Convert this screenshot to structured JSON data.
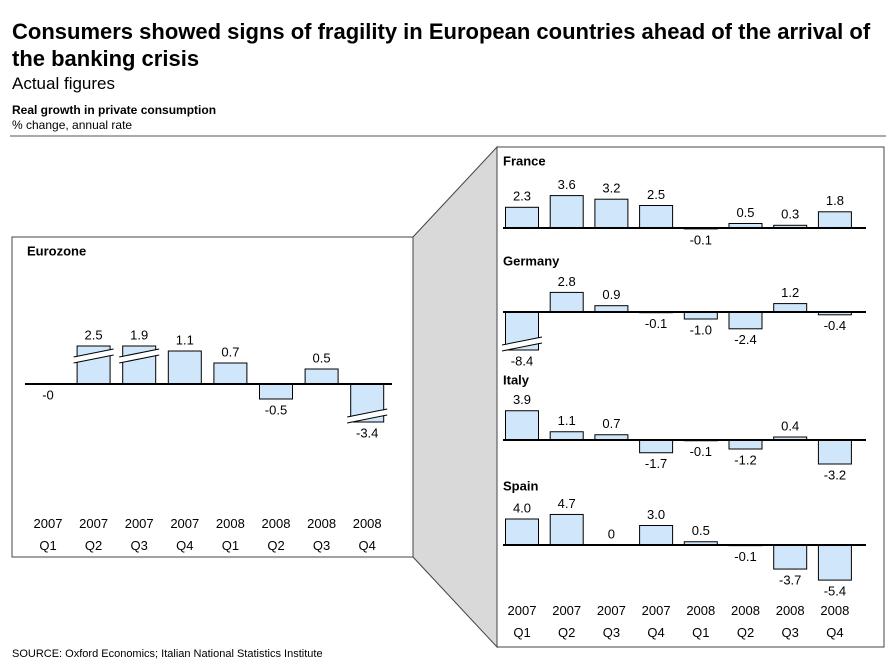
{
  "title": "Consumers showed signs of fragility in European countries ahead of the arrival of the banking crisis",
  "subtitle": "Actual figures",
  "chart_title": "Real growth in private consumption",
  "chart_subtitle": "% change, annual rate",
  "source": "SOURCE: Oxford Economics; Italian National Statistics Institute",
  "chart_data": [
    {
      "type": "bar",
      "title": "Eurozone",
      "color": "#cfe6fb",
      "categories": [
        "2007 Q1",
        "2007 Q2",
        "2007 Q3",
        "2007 Q4",
        "2008 Q1",
        "2008 Q2",
        "2008 Q3",
        "2008 Q4"
      ],
      "values": [
        0,
        2.5,
        1.9,
        1.1,
        0.7,
        -0.5,
        0.5,
        -3.4
      ],
      "value_labels": [
        "-0",
        "2.5",
        "1.9",
        "1.1",
        "0.7",
        "-0.5",
        "0.5",
        "-3.4"
      ]
    },
    {
      "type": "bar",
      "title": "France",
      "color": "#cfe6fb",
      "values": [
        2.3,
        3.6,
        3.2,
        2.5,
        -0.1,
        0.5,
        0.3,
        1.8
      ]
    },
    {
      "type": "bar",
      "title": "Germany",
      "color": "#cfe6fb",
      "values": [
        -8.4,
        2.8,
        0.9,
        -0.1,
        -1.0,
        -2.4,
        1.2,
        -0.4
      ],
      "value_labels": [
        "-8.4",
        "2.8",
        "0.9",
        "-0.1",
        "-1.0",
        "-2.4",
        "1.2",
        "-0.4"
      ]
    },
    {
      "type": "bar",
      "title": "Italy",
      "color": "#cfe6fb",
      "values": [
        3.9,
        1.1,
        0.7,
        -1.7,
        -0.1,
        -1.2,
        0.4,
        -3.2
      ]
    },
    {
      "type": "bar",
      "title": "Spain",
      "color": "#cfe6fb",
      "categories": [
        "2007 Q1",
        "2007 Q2",
        "2007 Q3",
        "2007 Q4",
        "2008 Q1",
        "2008 Q2",
        "2008 Q3",
        "2008 Q4"
      ],
      "values": [
        4.0,
        4.7,
        0,
        3.0,
        0.5,
        -0.1,
        -3.7,
        -5.4
      ],
      "value_labels": [
        "4.0",
        "4.7",
        "0",
        "3.0",
        "0.5",
        "-0.1",
        "-3.7",
        "-5.4"
      ]
    }
  ]
}
